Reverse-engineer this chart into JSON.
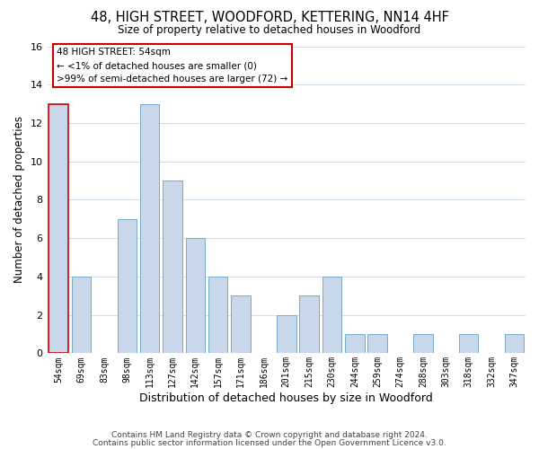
{
  "title": "48, HIGH STREET, WOODFORD, KETTERING, NN14 4HF",
  "subtitle": "Size of property relative to detached houses in Woodford",
  "xlabel": "Distribution of detached houses by size in Woodford",
  "ylabel": "Number of detached properties",
  "bar_labels": [
    "54sqm",
    "69sqm",
    "83sqm",
    "98sqm",
    "113sqm",
    "127sqm",
    "142sqm",
    "157sqm",
    "171sqm",
    "186sqm",
    "201sqm",
    "215sqm",
    "230sqm",
    "244sqm",
    "259sqm",
    "274sqm",
    "288sqm",
    "303sqm",
    "318sqm",
    "332sqm",
    "347sqm"
  ],
  "bar_values": [
    13,
    4,
    0,
    7,
    13,
    9,
    6,
    4,
    3,
    0,
    2,
    3,
    4,
    1,
    1,
    0,
    1,
    0,
    1,
    0,
    1
  ],
  "bar_color": "#c8d8ea",
  "bar_edge_color": "#7aaac8",
  "highlight_index": 0,
  "highlight_edge_color": "#cc0000",
  "ylim": [
    0,
    16
  ],
  "yticks": [
    0,
    2,
    4,
    6,
    8,
    10,
    12,
    14,
    16
  ],
  "annotation_text": "48 HIGH STREET: 54sqm\n← <1% of detached houses are smaller (0)\n>99% of semi-detached houses are larger (72) →",
  "annotation_box_edge_color": "#cc0000",
  "footer_line1": "Contains HM Land Registry data © Crown copyright and database right 2024.",
  "footer_line2": "Contains public sector information licensed under the Open Government Licence v3.0.",
  "background_color": "#ffffff",
  "grid_color": "#d0dce8"
}
